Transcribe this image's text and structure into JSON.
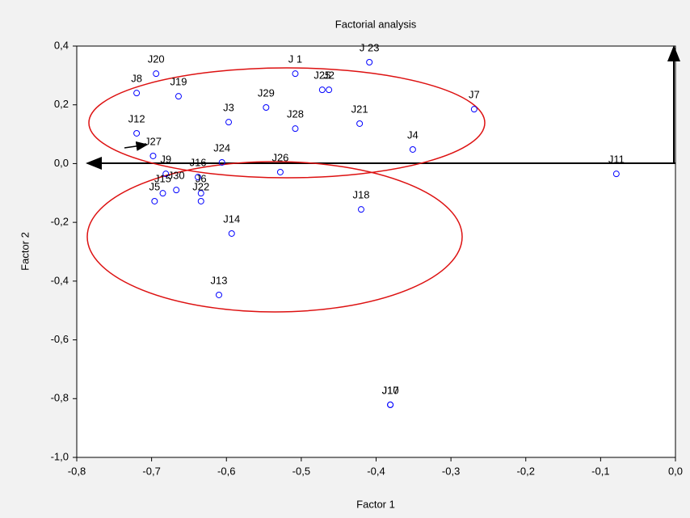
{
  "chart_data": {
    "type": "scatter",
    "title": "Factorial analysis",
    "x_label": "Factor 1",
    "y_label": "Factor 2",
    "color": "#0000ff",
    "labels": [
      "J20",
      "J8",
      "J19",
      "J 1",
      "J 23",
      "J25",
      "J2",
      "J29",
      "J3",
      "J28",
      "J21",
      "J7",
      "J12",
      "J4",
      "J27",
      "J24",
      "J26",
      "J11",
      "J9",
      "J16",
      "J15",
      "J30",
      "J6",
      "J22",
      "J5",
      "J18",
      "J14",
      "J13",
      "J10",
      "J17"
    ],
    "x": [
      -0.694,
      -0.72,
      -0.664,
      -0.508,
      -0.409,
      -0.472,
      -0.463,
      -0.547,
      -0.597,
      -0.508,
      -0.422,
      -0.269,
      -0.72,
      -0.351,
      -0.698,
      -0.606,
      -0.528,
      -0.079,
      -0.681,
      -0.638,
      -0.685,
      -0.667,
      -0.634,
      -0.634,
      -0.696,
      -0.42,
      -0.593,
      -0.61,
      -0.381,
      -0.381
    ],
    "values": [
      0.306,
      0.24,
      0.229,
      0.306,
      0.345,
      0.251,
      0.251,
      0.191,
      0.141,
      0.119,
      0.136,
      0.185,
      0.103,
      0.048,
      0.026,
      0.004,
      -0.029,
      -0.035,
      -0.035,
      -0.046,
      -0.101,
      -0.09,
      -0.101,
      -0.128,
      -0.128,
      -0.156,
      -0.238,
      -0.447,
      -0.821,
      -0.821
    ],
    "xlim": [
      -0.8,
      0.0
    ],
    "xticks": [
      {
        "value": -0.8,
        "label": "-0,8"
      },
      {
        "value": -0.7,
        "label": "-0,7"
      },
      {
        "value": -0.6,
        "label": "-0,6"
      },
      {
        "value": -0.5,
        "label": "-0,5"
      },
      {
        "value": -0.4,
        "label": "-0,4"
      },
      {
        "value": -0.3,
        "label": "-0,3"
      },
      {
        "value": -0.2,
        "label": "-0,2"
      },
      {
        "value": -0.1,
        "label": "-0,1"
      },
      {
        "value": 0.0,
        "label": "0,0"
      }
    ],
    "ylim": [
      -1.0,
      0.4
    ],
    "yticks": [
      {
        "value": -1.0,
        "label": "-1,0"
      },
      {
        "value": -0.8,
        "label": "-0,8"
      },
      {
        "value": -0.6,
        "label": "-0,6"
      },
      {
        "value": -0.4,
        "label": "-0,4"
      },
      {
        "value": -0.2,
        "label": "-0,2"
      },
      {
        "value": 0.0,
        "label": "0,0"
      },
      {
        "value": 0.2,
        "label": "0,2"
      },
      {
        "value": 0.4,
        "label": "0,4"
      }
    ],
    "grid": false
  }
}
